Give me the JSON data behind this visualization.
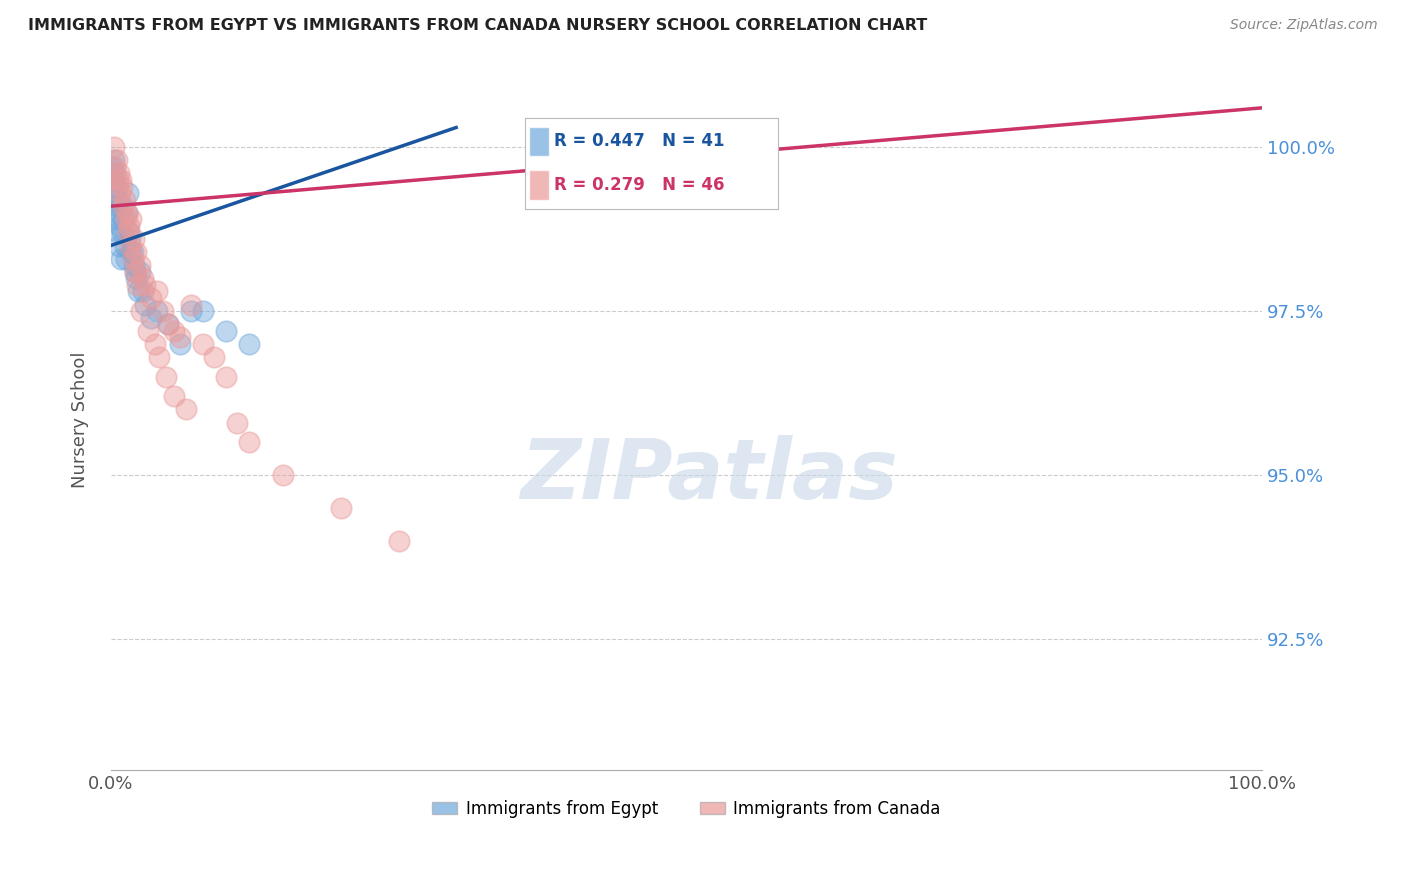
{
  "title": "IMMIGRANTS FROM EGYPT VS IMMIGRANTS FROM CANADA NURSERY SCHOOL CORRELATION CHART",
  "source": "Source: ZipAtlas.com",
  "ylabel": "Nursery School",
  "xlim": [
    0.0,
    100.0
  ],
  "ylim": [
    90.5,
    101.2
  ],
  "yticks": [
    92.5,
    95.0,
    97.5,
    100.0
  ],
  "ytick_labels": [
    "92.5%",
    "95.0%",
    "97.5%",
    "100.0%"
  ],
  "xtick_labels": [
    "0.0%",
    "100.0%"
  ],
  "legend_blue_r": "R = 0.447",
  "legend_blue_n": "N = 41",
  "legend_pink_r": "R = 0.279",
  "legend_pink_n": "N = 46",
  "legend_label_blue": "Immigrants from Egypt",
  "legend_label_pink": "Immigrants from Canada",
  "blue_color": "#6fa8dc",
  "pink_color": "#ea9999",
  "trendline_blue_color": "#1a56a0",
  "trendline_pink_color": "#cc3366",
  "blue_scatter_x": [
    0.2,
    0.3,
    0.4,
    0.5,
    0.6,
    0.7,
    0.8,
    0.9,
    1.0,
    1.1,
    1.2,
    1.3,
    1.5,
    1.7,
    1.8,
    2.0,
    2.2,
    2.5,
    2.8,
    3.0,
    3.5,
    4.0,
    5.0,
    6.0,
    0.15,
    0.25,
    0.35,
    0.45,
    0.55,
    0.65,
    0.75,
    0.85,
    1.4,
    1.6,
    1.9,
    2.1,
    2.4,
    7.0,
    8.0,
    10.0,
    12.0
  ],
  "blue_scatter_y": [
    99.5,
    99.8,
    99.6,
    99.4,
    99.2,
    99.0,
    98.8,
    99.1,
    98.7,
    98.9,
    98.5,
    98.3,
    99.3,
    98.6,
    98.4,
    98.2,
    98.0,
    98.1,
    97.8,
    97.6,
    97.4,
    97.5,
    97.3,
    97.0,
    99.7,
    99.5,
    99.3,
    99.1,
    98.9,
    98.7,
    98.5,
    98.3,
    99.0,
    98.7,
    98.4,
    98.1,
    97.8,
    97.5,
    97.5,
    97.2,
    97.0
  ],
  "pink_scatter_x": [
    0.3,
    0.5,
    0.7,
    0.9,
    1.0,
    1.2,
    1.4,
    1.6,
    1.8,
    2.0,
    2.2,
    2.5,
    2.8,
    3.0,
    3.5,
    4.0,
    4.5,
    5.0,
    5.5,
    6.0,
    7.0,
    8.0,
    9.0,
    10.0,
    12.0,
    15.0,
    20.0,
    25.0,
    0.4,
    0.6,
    0.8,
    1.1,
    1.3,
    1.5,
    1.7,
    1.9,
    2.1,
    2.3,
    2.6,
    3.2,
    3.8,
    4.2,
    4.8,
    5.5,
    6.5,
    11.0
  ],
  "pink_scatter_y": [
    100.0,
    99.8,
    99.6,
    99.5,
    99.4,
    99.2,
    99.0,
    98.8,
    98.9,
    98.6,
    98.4,
    98.2,
    98.0,
    97.9,
    97.7,
    97.8,
    97.5,
    97.3,
    97.2,
    97.1,
    97.6,
    97.0,
    96.8,
    96.5,
    95.5,
    95.0,
    94.5,
    94.0,
    99.7,
    99.5,
    99.3,
    99.1,
    98.9,
    98.7,
    98.5,
    98.3,
    98.1,
    97.9,
    97.5,
    97.2,
    97.0,
    96.8,
    96.5,
    96.2,
    96.0,
    95.8
  ],
  "background_color": "#ffffff",
  "grid_color": "#cccccc",
  "title_color": "#222222",
  "axis_color": "#555555",
  "source_color": "#888888",
  "right_label_color": "#4a90d9",
  "watermark_text": "ZIPatlas",
  "watermark_color": "#c8d8e8",
  "trendline_blue_x0": 0.0,
  "trendline_blue_y0": 98.5,
  "trendline_blue_x1": 30.0,
  "trendline_blue_y1": 100.3,
  "trendline_pink_x0": 0.0,
  "trendline_pink_y0": 99.1,
  "trendline_pink_x1": 100.0,
  "trendline_pink_y1": 100.6
}
